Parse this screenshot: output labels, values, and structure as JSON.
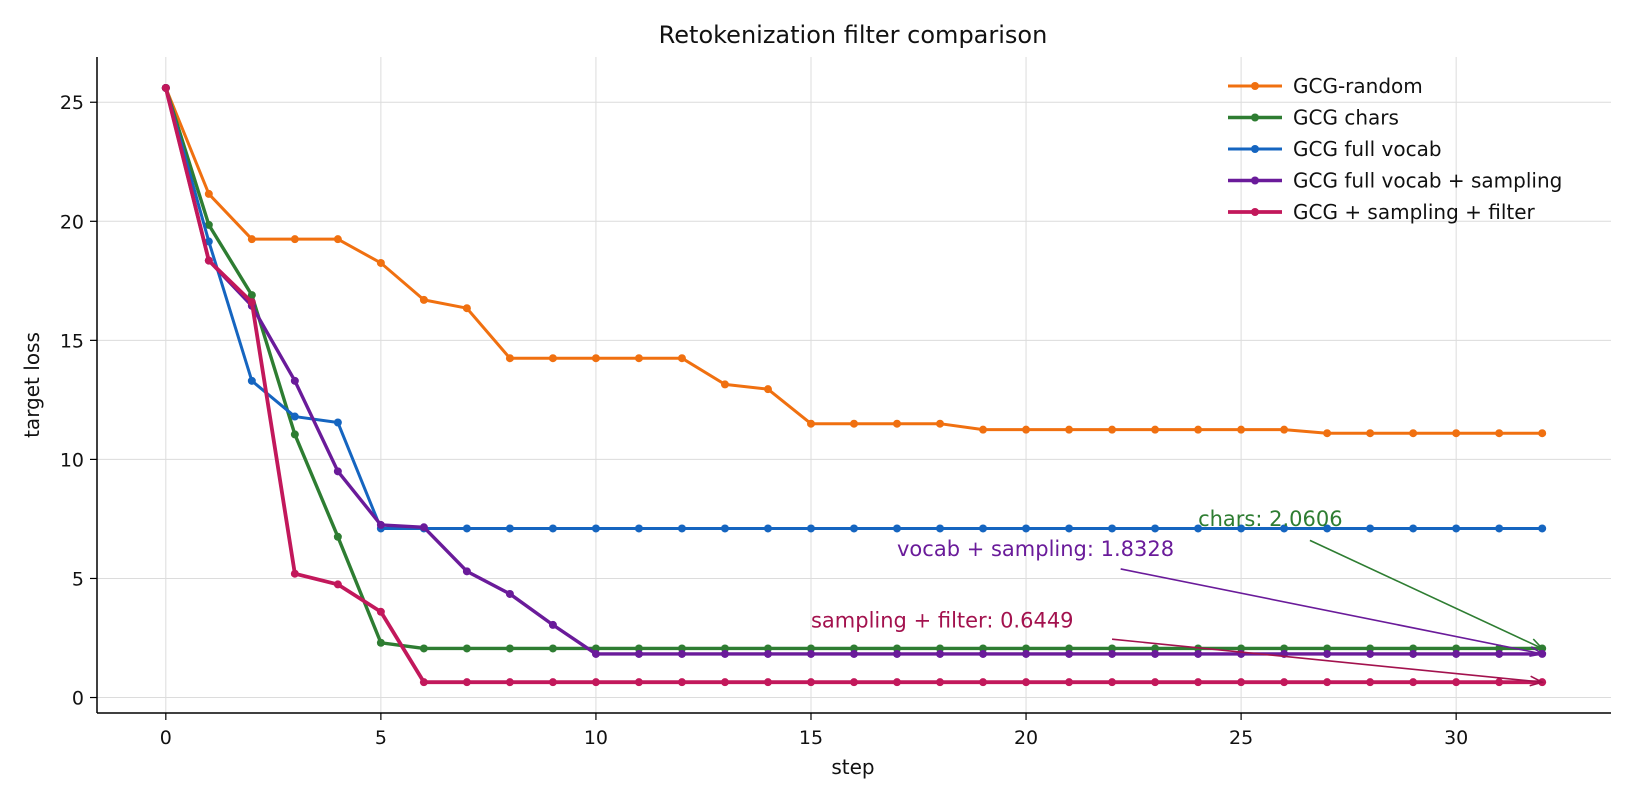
{
  "chart_data": {
    "type": "line",
    "title": "Retokenization filter comparison",
    "xlabel": "step",
    "ylabel": "target loss",
    "xlim": [
      -1.6,
      33.6
    ],
    "ylim": [
      -0.65,
      26.9
    ],
    "x_ticks": [
      0,
      5,
      10,
      15,
      20,
      25,
      30
    ],
    "y_ticks": [
      0,
      5,
      10,
      15,
      20,
      25
    ],
    "grid": true,
    "legend_position": "top-right",
    "x": [
      0,
      1,
      2,
      3,
      4,
      5,
      6,
      7,
      8,
      9,
      10,
      11,
      12,
      13,
      14,
      15,
      16,
      17,
      18,
      19,
      20,
      21,
      22,
      23,
      24,
      25,
      26,
      27,
      28,
      29,
      30,
      31,
      32
    ],
    "series": [
      {
        "name": "GCG-random",
        "color": "#f07010",
        "width": 3,
        "values": [
          25.6,
          21.15,
          19.25,
          19.25,
          19.25,
          18.25,
          16.7,
          16.35,
          14.25,
          14.25,
          14.25,
          14.25,
          14.25,
          13.15,
          12.95,
          11.5,
          11.5,
          11.5,
          11.5,
          11.25,
          11.25,
          11.25,
          11.25,
          11.25,
          11.25,
          11.25,
          11.25,
          11.1,
          11.1,
          11.1,
          11.1,
          11.1,
          11.1
        ]
      },
      {
        "name": "GCG chars",
        "color": "#2e7d32",
        "width": 3.4,
        "values": [
          25.6,
          19.85,
          16.9,
          11.05,
          6.75,
          2.3,
          2.06,
          2.06,
          2.06,
          2.06,
          2.06,
          2.06,
          2.06,
          2.06,
          2.06,
          2.06,
          2.06,
          2.06,
          2.06,
          2.06,
          2.06,
          2.06,
          2.06,
          2.06,
          2.06,
          2.06,
          2.06,
          2.06,
          2.06,
          2.06,
          2.06,
          2.06,
          2.0606
        ]
      },
      {
        "name": "GCG full vocab",
        "color": "#1565c0",
        "width": 3,
        "values": [
          25.6,
          19.15,
          13.3,
          11.8,
          11.55,
          7.1,
          7.1,
          7.1,
          7.1,
          7.1,
          7.1,
          7.1,
          7.1,
          7.1,
          7.1,
          7.1,
          7.1,
          7.1,
          7.1,
          7.1,
          7.1,
          7.1,
          7.1,
          7.1,
          7.1,
          7.1,
          7.1,
          7.1,
          7.1,
          7.1,
          7.1,
          7.1,
          7.1
        ]
      },
      {
        "name": "GCG full vocab + sampling",
        "color": "#6a1b9a",
        "width": 3.4,
        "values": [
          25.6,
          18.35,
          16.45,
          13.3,
          9.5,
          7.25,
          7.15,
          5.3,
          4.35,
          3.05,
          1.83,
          1.83,
          1.83,
          1.83,
          1.83,
          1.83,
          1.83,
          1.83,
          1.83,
          1.83,
          1.83,
          1.83,
          1.83,
          1.83,
          1.83,
          1.83,
          1.83,
          1.83,
          1.83,
          1.83,
          1.83,
          1.83,
          1.8328
        ]
      },
      {
        "name": "GCG + sampling + filter",
        "color": "#c2185b",
        "width": 3.8,
        "values": [
          25.6,
          18.35,
          16.6,
          5.2,
          4.75,
          3.6,
          0.6449,
          0.6449,
          0.6449,
          0.6449,
          0.6449,
          0.6449,
          0.6449,
          0.6449,
          0.6449,
          0.6449,
          0.6449,
          0.6449,
          0.6449,
          0.6449,
          0.6449,
          0.6449,
          0.6449,
          0.6449,
          0.6449,
          0.6449,
          0.6449,
          0.6449,
          0.6449,
          0.6449,
          0.6449,
          0.6449,
          0.6449
        ]
      }
    ],
    "annotations": [
      {
        "text": "chars: 2.0606",
        "color": "#2e7d32",
        "text_x": 24.0,
        "text_y": 7.2,
        "tail_x": 26.6,
        "tail_y": 6.6,
        "target_x": 32,
        "target_y": 2.0606
      },
      {
        "text": "vocab + sampling: 1.8328",
        "color": "#6a1b9a",
        "text_x": 17.0,
        "text_y": 5.95,
        "tail_x": 22.2,
        "tail_y": 5.4,
        "target_x": 32,
        "target_y": 1.8328
      },
      {
        "text": "sampling + filter: 0.6449",
        "color": "#a3124e",
        "text_x": 15.0,
        "text_y": 2.95,
        "tail_x": 22.0,
        "tail_y": 2.45,
        "target_x": 32,
        "target_y": 0.6449
      }
    ]
  }
}
